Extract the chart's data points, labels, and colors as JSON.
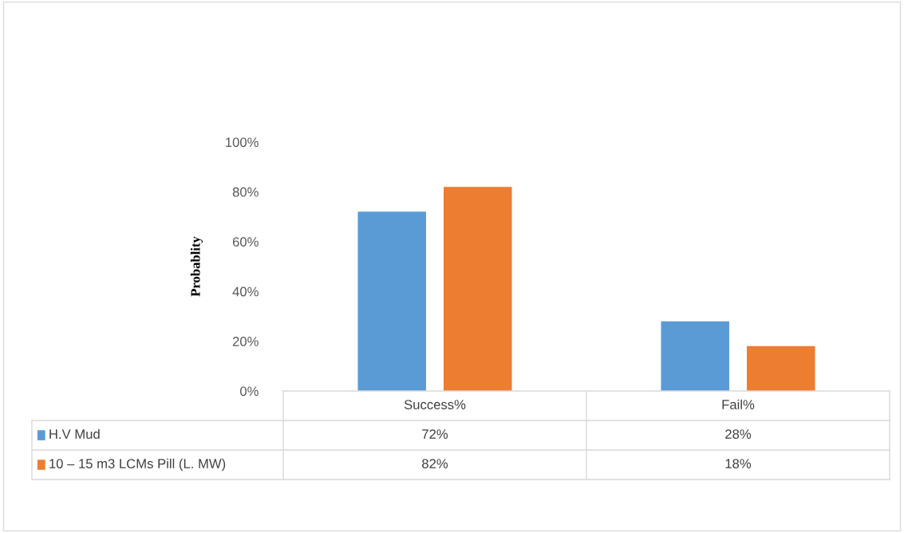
{
  "chart_data": {
    "type": "bar",
    "ylabel": "Probablity",
    "categories": [
      "Success%",
      "Fail%"
    ],
    "series": [
      {
        "name": "H.V Mud",
        "color": "#5b9bd5",
        "values": [
          72,
          28
        ],
        "value_labels": [
          "72%",
          "28%"
        ]
      },
      {
        "name": "10 – 15 m3 LCMs Pill (L. MW)",
        "color": "#ed7d31",
        "values": [
          82,
          18
        ],
        "value_labels": [
          "82%",
          "18%"
        ]
      }
    ],
    "ylim": [
      0,
      100
    ],
    "yticks": [
      {
        "value": 0,
        "label": "0%"
      },
      {
        "value": 20,
        "label": "20%"
      },
      {
        "value": 40,
        "label": "40%"
      },
      {
        "value": 60,
        "label": "60%"
      },
      {
        "value": 80,
        "label": "80%"
      },
      {
        "value": 100,
        "label": "100%"
      }
    ],
    "legend": "bottom",
    "grid": false
  }
}
